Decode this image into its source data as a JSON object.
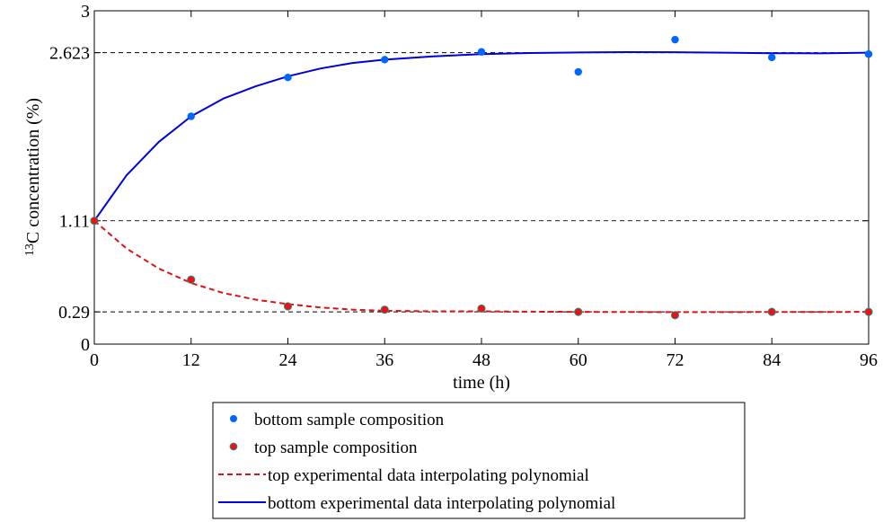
{
  "chart_data": {
    "type": "scatter",
    "xlabel": "time (h)",
    "ylabel_sup": "13",
    "ylabel": "C concentration (%)",
    "xlim": [
      0,
      96
    ],
    "ylim": [
      0,
      3
    ],
    "xticks": [
      0,
      12,
      24,
      36,
      48,
      60,
      72,
      84,
      96
    ],
    "yticks": [
      0,
      0.29,
      1.11,
      2.623,
      3
    ],
    "ytick_labels": [
      "0",
      "0.29",
      "1.11",
      "2.623",
      "3"
    ],
    "reference_lines": [
      0.29,
      1.11,
      2.623
    ],
    "grid": false,
    "legend_position": "below",
    "series": [
      {
        "name": "bottom sample composition",
        "kind": "markers",
        "color": "#0066ff",
        "x": [
          0,
          12,
          24,
          36,
          48,
          60,
          72,
          84,
          96
        ],
        "y": [
          1.11,
          2.05,
          2.4,
          2.56,
          2.63,
          2.45,
          2.74,
          2.58,
          2.61
        ]
      },
      {
        "name": "top sample composition",
        "kind": "markers",
        "color": "#ee1111",
        "x": [
          0,
          12,
          24,
          36,
          48,
          60,
          72,
          84,
          96
        ],
        "y": [
          1.11,
          0.58,
          0.34,
          0.31,
          0.32,
          0.29,
          0.26,
          0.29,
          0.29
        ]
      },
      {
        "name": "top experimental data interpolating polynomial",
        "kind": "dashed-line",
        "color": "#dd1111",
        "x": [
          0,
          4,
          8,
          12,
          16,
          20,
          24,
          28,
          32,
          36,
          42,
          48,
          54,
          60,
          66,
          72,
          78,
          84,
          90,
          96
        ],
        "y": [
          1.11,
          0.86,
          0.68,
          0.55,
          0.46,
          0.4,
          0.36,
          0.33,
          0.31,
          0.3,
          0.295,
          0.295,
          0.292,
          0.29,
          0.289,
          0.288,
          0.288,
          0.289,
          0.289,
          0.29
        ]
      },
      {
        "name": "bottom experimental data interpolating polynomial",
        "kind": "solid-line",
        "color": "#0000dd",
        "x": [
          0,
          4,
          8,
          12,
          16,
          20,
          24,
          28,
          32,
          36,
          42,
          48,
          54,
          60,
          66,
          72,
          78,
          84,
          90,
          96
        ],
        "y": [
          1.11,
          1.52,
          1.82,
          2.05,
          2.21,
          2.32,
          2.41,
          2.48,
          2.53,
          2.56,
          2.59,
          2.61,
          2.62,
          2.625,
          2.628,
          2.627,
          2.623,
          2.618,
          2.617,
          2.623
        ]
      }
    ]
  }
}
